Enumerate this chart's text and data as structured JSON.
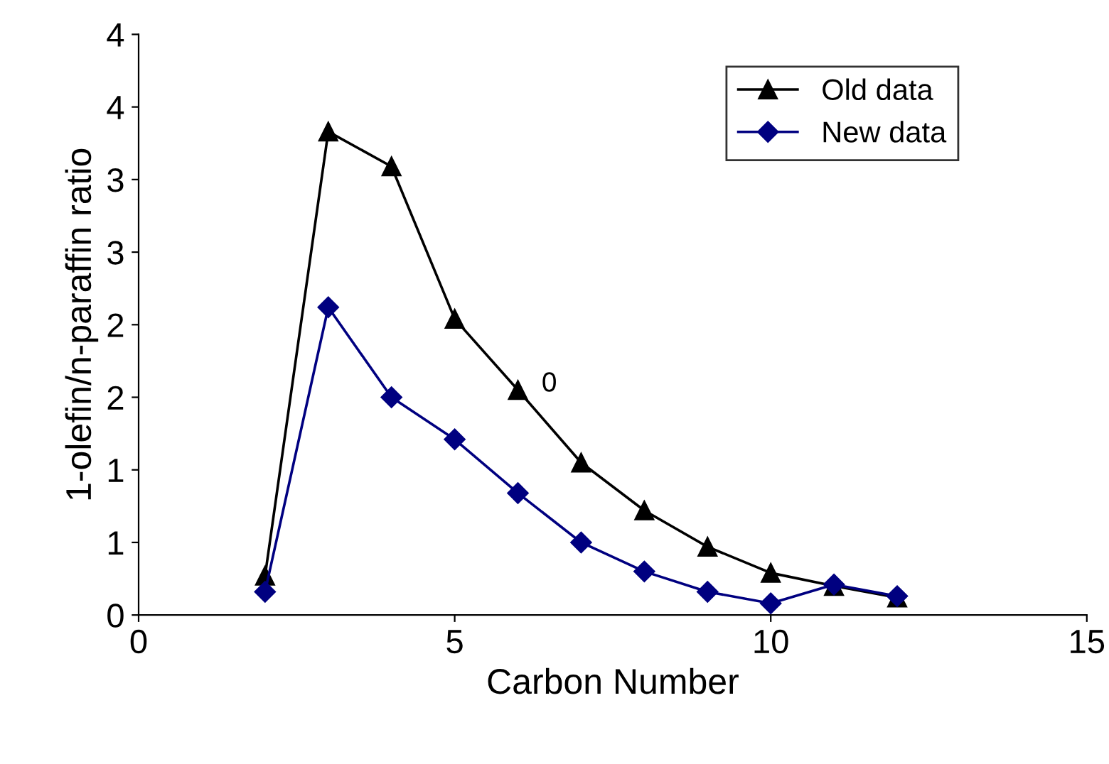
{
  "chart_data": {
    "type": "line",
    "xlabel": "Carbon Number",
    "ylabel": "1-olefin/n-paraffin ratio",
    "xlim": [
      0,
      15
    ],
    "xticks": [
      0,
      5,
      10,
      15
    ],
    "ylim": [
      0,
      4
    ],
    "yticks": [
      0,
      {
        "value": 0.5,
        "label": "1"
      },
      1,
      {
        "value": 1.5,
        "label": "2"
      },
      2,
      {
        "value": 2.5,
        "label": "3"
      },
      3,
      {
        "value": 3.5,
        "label": "4"
      },
      4
    ],
    "grid": false,
    "legend": "top right",
    "line_style": "solid",
    "annotations": [
      "0"
    ],
    "series": [
      {
        "name": "Old data",
        "color": "#000000",
        "marker": "triangle",
        "x": [
          2,
          3,
          4,
          5,
          6,
          7,
          8,
          9,
          10,
          11,
          12
        ],
        "values": [
          0.27,
          3.33,
          3.09,
          2.04,
          1.55,
          1.05,
          0.72,
          0.47,
          0.29,
          0.2,
          0.12
        ]
      },
      {
        "name": "New data",
        "color": "#000080",
        "marker": "diamond",
        "x": [
          2,
          3,
          4,
          5,
          6,
          7,
          8,
          9,
          10,
          11,
          12
        ],
        "values": [
          0.16,
          2.12,
          1.5,
          1.21,
          0.84,
          0.5,
          0.3,
          0.16,
          0.08,
          0.21,
          0.13
        ]
      }
    ]
  }
}
